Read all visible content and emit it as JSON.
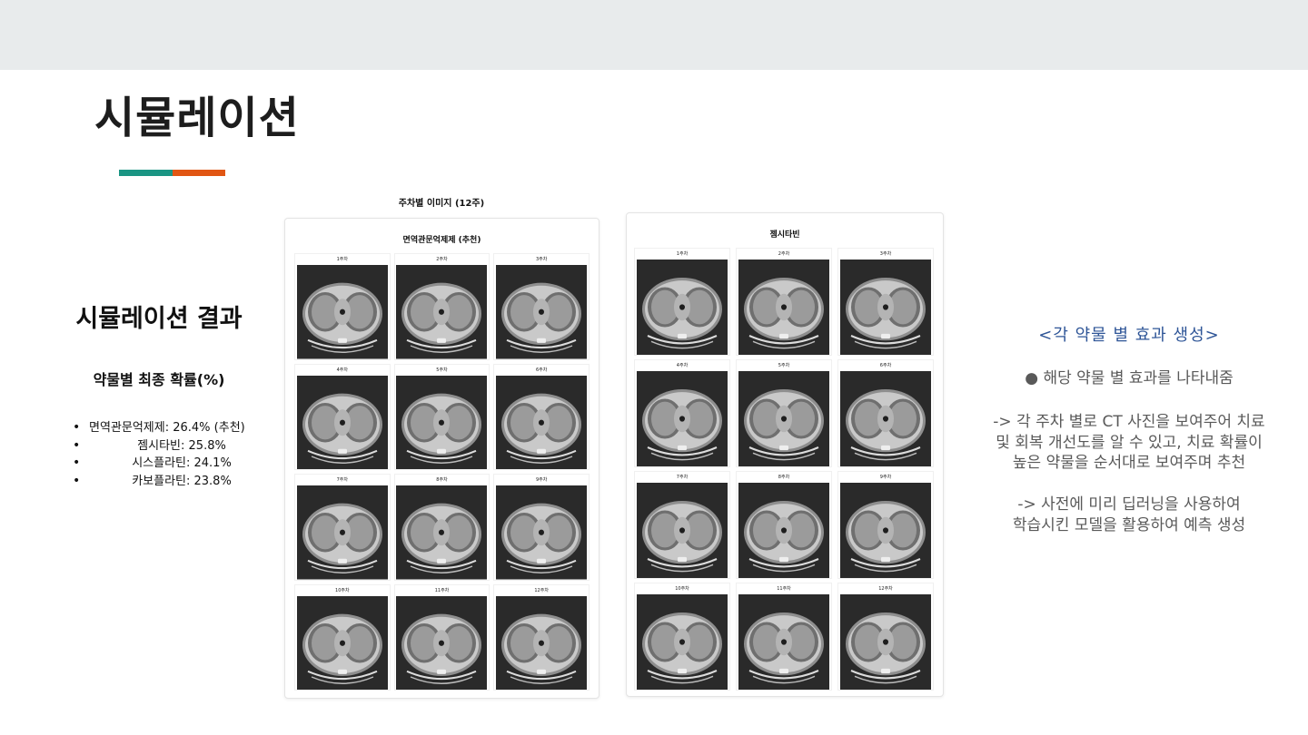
{
  "slide": {
    "title": "시뮬레이션"
  },
  "results": {
    "heading": "시뮬레이션 결과",
    "prob_title": "약물별 최종 확률(%)",
    "items": [
      "면역관문억제제: 26.4% (추천)",
      "젬시타빈: 25.8%",
      "시스플라틴: 24.1%",
      "카보플라틴: 23.8%"
    ]
  },
  "panel_caption": "주차별 이미지 (12주)",
  "panels": [
    {
      "title": "면역관문억제제 (추천)",
      "weeks": [
        "1주차",
        "2주차",
        "3주차",
        "4주차",
        "5주차",
        "6주차",
        "7주차",
        "8주차",
        "9주차",
        "10주차",
        "11주차",
        "12주차"
      ]
    },
    {
      "title": "젬시타빈",
      "weeks": [
        "1주차",
        "2주차",
        "3주차",
        "4주차",
        "5주차",
        "6주차",
        "7주차",
        "8주차",
        "9주차",
        "10주차",
        "11주차",
        "12주차"
      ]
    }
  ],
  "notes": {
    "heading": "<각 약물 별 효과 생성>",
    "bullet": "● 해당 약물 별 효과를 나타내줌",
    "para1": [
      "-> 각 주차 별로 CT 사진을 보여주어 치료",
      "및 회복 개선도를 알 수 있고, 치료 확률이",
      "높은 약물을 순서대로 보여주며 추천"
    ],
    "para2": [
      "-> 사전에 미리 딥러닝을 사용하여",
      "학습시킨 모델을 활용하여 예측 생성"
    ]
  },
  "colors": {
    "accent_teal": "#1a9583",
    "accent_orange": "#e15613",
    "note_heading": "#2e5597",
    "topbar": "#e8ebec"
  }
}
